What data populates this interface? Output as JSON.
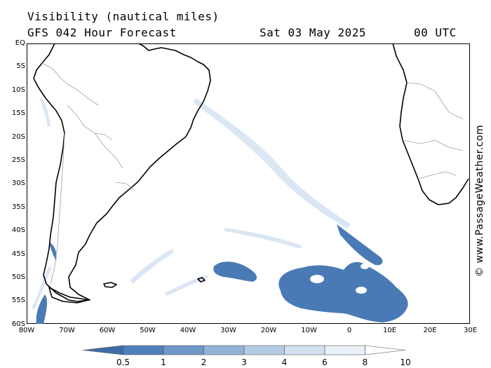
{
  "header": {
    "title": "Visibility (nautical miles)",
    "model": "GFS 042 Hour Forecast",
    "date": "Sat 03 May 2025",
    "time": "00 UTC"
  },
  "credit": "© www.PassageWeather.com",
  "map": {
    "lat_labels": [
      "EQ",
      "5S",
      "10S",
      "15S",
      "20S",
      "25S",
      "30S",
      "35S",
      "40S",
      "45S",
      "50S",
      "55S",
      "60S"
    ],
    "lon_labels": [
      "80W",
      "70W",
      "60W",
      "50W",
      "40W",
      "30W",
      "20W",
      "10W",
      "0",
      "10E",
      "20E",
      "30E"
    ],
    "colors": {
      "land_border": "#000000",
      "country_border": "#a0a0a0",
      "low_visibility": "#4a7ab5"
    }
  },
  "colorbar": {
    "labels": [
      "0.5",
      "1",
      "2",
      "3",
      "4",
      "6",
      "8",
      "10"
    ],
    "colors": [
      "#3f6ca8",
      "#4f7fbc",
      "#6f98c8",
      "#92b2d6",
      "#b4cbe3",
      "#d3e0ef",
      "#eaf0f8",
      "#ffffff"
    ]
  }
}
